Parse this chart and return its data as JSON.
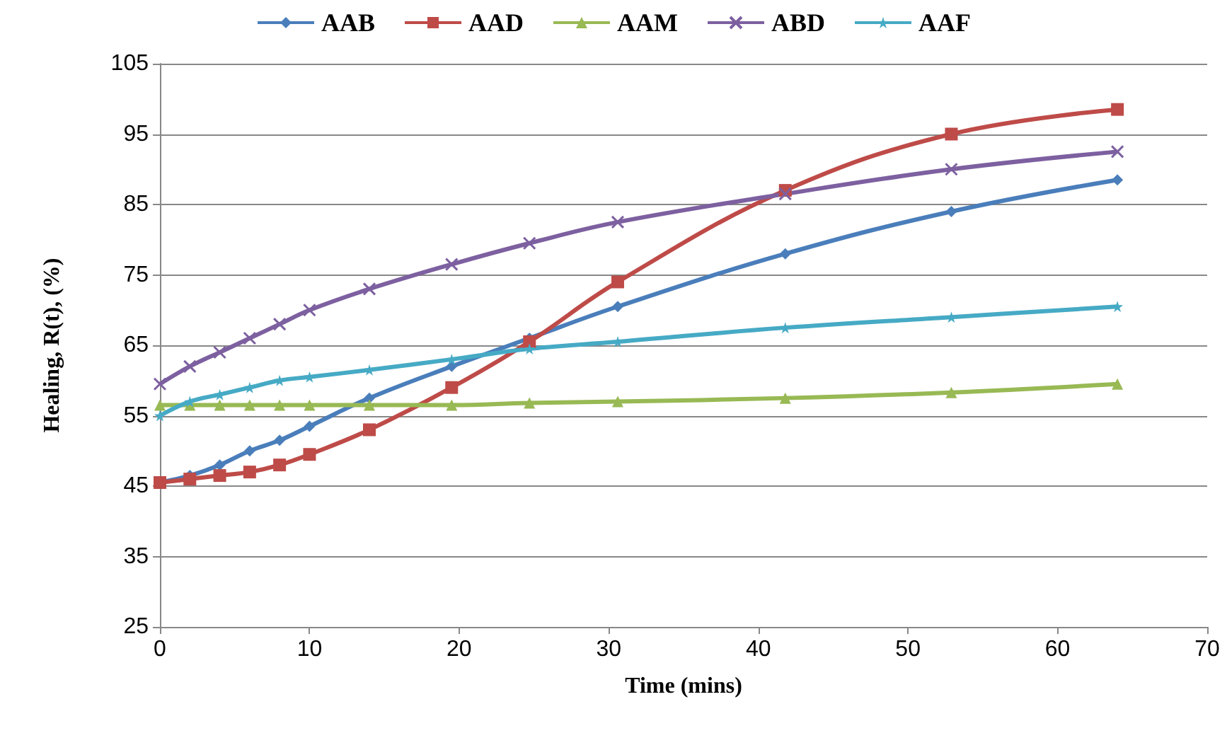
{
  "chart_data": {
    "type": "line",
    "xlabel": "Time (mins)",
    "ylabel": "Healing, R(t), (%)",
    "x": [
      0,
      2,
      4,
      6,
      8,
      10,
      14,
      19.5,
      24.7,
      30.6,
      41.8,
      52.9,
      64
    ],
    "series": [
      {
        "name": "AAB",
        "color": "#4a7ebb",
        "marker": "diamond",
        "values": [
          45.5,
          46.5,
          48,
          50,
          51.5,
          53.5,
          57.5,
          62,
          66,
          70.5,
          78,
          84,
          88.5
        ]
      },
      {
        "name": "AAD",
        "color": "#be4b48",
        "marker": "square",
        "values": [
          45.5,
          46,
          46.5,
          47,
          48,
          49.5,
          53,
          59,
          65.5,
          74,
          87,
          95,
          98.5
        ]
      },
      {
        "name": "AAM",
        "color": "#98b954",
        "marker": "triangle",
        "values": [
          56.5,
          56.5,
          56.5,
          56.5,
          56.5,
          56.5,
          56.5,
          56.5,
          56.8,
          57,
          57.5,
          58.3,
          59.5
        ]
      },
      {
        "name": "ABD",
        "color": "#7d60a0",
        "marker": "cross",
        "values": [
          59.5,
          62,
          64,
          66,
          68,
          70,
          73,
          76.5,
          79.5,
          82.5,
          86.5,
          90,
          92.5
        ]
      },
      {
        "name": "AAF",
        "color": "#46aac5",
        "marker": "star",
        "values": [
          55,
          57,
          58,
          59,
          60,
          60.5,
          61.5,
          63,
          64.5,
          65.5,
          67.5,
          69,
          70.5
        ]
      }
    ],
    "xlim": [
      0,
      70
    ],
    "xticks": [
      0,
      10,
      20,
      30,
      40,
      50,
      60,
      70
    ],
    "ylim": [
      25,
      105
    ],
    "yticks": [
      25,
      35,
      45,
      55,
      65,
      75,
      85,
      95,
      105
    ],
    "grid": "y",
    "legend": "top",
    "line_style": "solid"
  }
}
